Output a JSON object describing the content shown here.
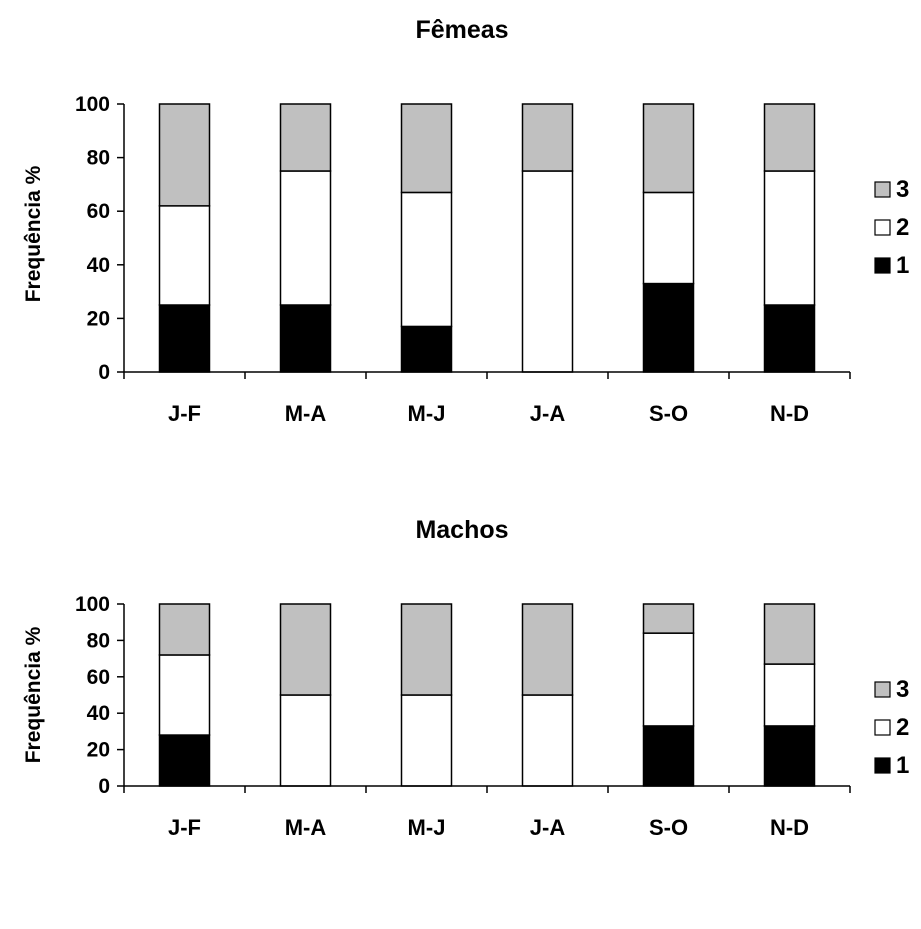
{
  "colors": {
    "level_1": "#000000",
    "level_2": "#ffffff",
    "level_3": "#c0c0c0",
    "outline": "#000000"
  },
  "chart_data": [
    {
      "type": "bar",
      "stacked": true,
      "title": "Fêmeas",
      "xlabel": "",
      "ylabel": "Frequência %",
      "ylim": [
        0,
        100
      ],
      "yticks": [
        "0",
        "20",
        "40",
        "60",
        "80",
        "100"
      ],
      "categories": [
        "J-F",
        "M-A",
        "M-J",
        "J-A",
        "S-O",
        "N-D"
      ],
      "legend": [
        "3",
        "2",
        "1"
      ],
      "legend_position": "right",
      "series": [
        {
          "name": "1",
          "values": [
            25,
            25,
            17,
            0,
            33,
            25
          ]
        },
        {
          "name": "2",
          "values": [
            37,
            50,
            50,
            75,
            34,
            50
          ]
        },
        {
          "name": "3",
          "values": [
            38,
            25,
            33,
            25,
            33,
            25
          ]
        }
      ]
    },
    {
      "type": "bar",
      "stacked": true,
      "title": "Machos",
      "xlabel": "",
      "ylabel": "Frequência %",
      "ylim": [
        0,
        100
      ],
      "yticks": [
        "0",
        "20",
        "40",
        "60",
        "80",
        "100"
      ],
      "categories": [
        "J-F",
        "M-A",
        "M-J",
        "J-A",
        "S-O",
        "N-D"
      ],
      "legend": [
        "3",
        "2",
        "1"
      ],
      "legend_position": "right",
      "series": [
        {
          "name": "1",
          "values": [
            28,
            0,
            0,
            0,
            33,
            33
          ]
        },
        {
          "name": "2",
          "values": [
            44,
            50,
            50,
            50,
            51,
            34
          ]
        },
        {
          "name": "3",
          "values": [
            28,
            50,
            50,
            50,
            16,
            33
          ]
        }
      ]
    }
  ]
}
